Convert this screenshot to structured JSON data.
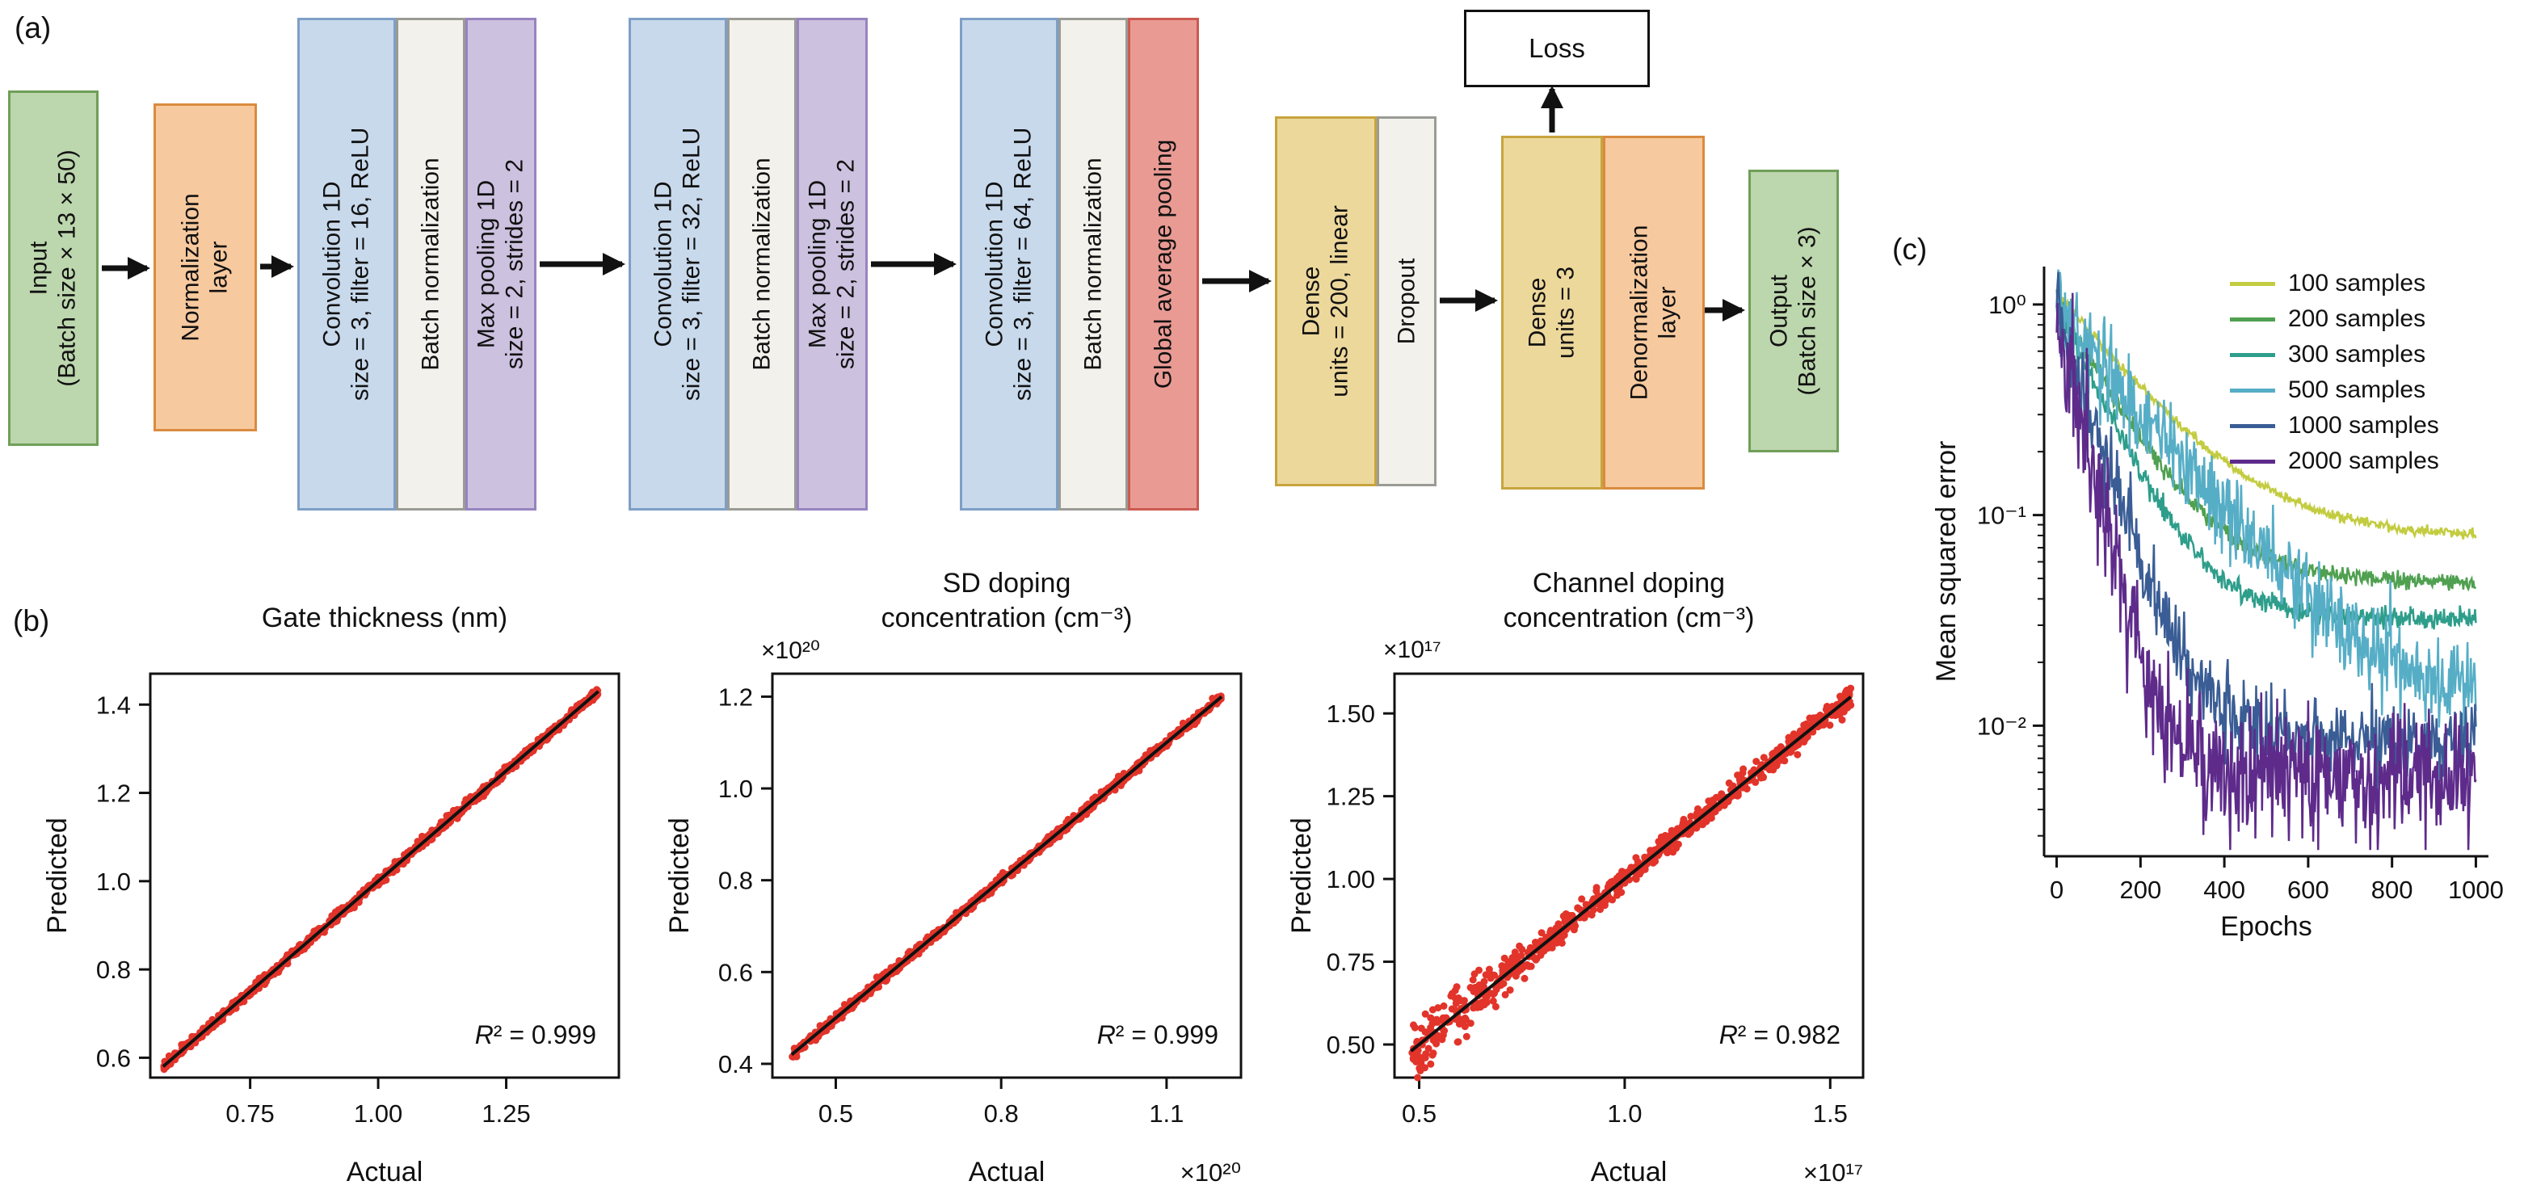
{
  "panel_labels": {
    "a": "(a)",
    "b": "(b)",
    "c": "(c)"
  },
  "architecture": {
    "loss_label": "Loss",
    "colors": {
      "input_output": "#bcd6ad",
      "normalization": "#f7c99e",
      "convolution": "#c8d9ec",
      "batch_norm": "#f2f1ec",
      "max_pooling": "#ccc1df",
      "global_average_pooling": "#e99a93",
      "dense": "#edd89b"
    },
    "blocks": [
      {
        "name": "input",
        "label": "Input\n(Batch size × 13 × 50)",
        "color": "#bcd6ad"
      },
      {
        "name": "normalization-layer",
        "label": "Normalization\nlayer",
        "color": "#f7c99e"
      },
      {
        "name": "conv1d-16",
        "label": "Convolution 1D\nsize = 3, filter = 16, ReLU",
        "color": "#c8d9ec"
      },
      {
        "name": "batch-norm-1",
        "label": "Batch normalization",
        "color": "#f2f1ec"
      },
      {
        "name": "max-pool-1",
        "label": "Max pooling 1D\nsize = 2, strides = 2",
        "color": "#ccc1df"
      },
      {
        "name": "conv1d-32",
        "label": "Convolution 1D\nsize = 3, filter = 32, ReLU",
        "color": "#c8d9ec"
      },
      {
        "name": "batch-norm-2",
        "label": "Batch normalization",
        "color": "#f2f1ec"
      },
      {
        "name": "max-pool-2",
        "label": "Max pooling 1D\nsize = 2, strides = 2",
        "color": "#ccc1df"
      },
      {
        "name": "conv1d-64",
        "label": "Convolution 1D\nsize = 3, filter = 64, ReLU",
        "color": "#c8d9ec"
      },
      {
        "name": "batch-norm-3",
        "label": "Batch normalization",
        "color": "#f2f1ec"
      },
      {
        "name": "global-average-pooling",
        "label": "Global average pooling",
        "color": "#e99a93"
      },
      {
        "name": "dense-200",
        "label": "Dense\nunits = 200, linear",
        "color": "#edd89b"
      },
      {
        "name": "dropout",
        "label": "Dropout",
        "color": "#f2f1ec"
      },
      {
        "name": "dense-3",
        "label": "Dense\nunits = 3",
        "color": "#edd89b"
      },
      {
        "name": "denormalization-layer",
        "label": "Denormalization\nlayer",
        "color": "#f7c99e"
      },
      {
        "name": "output",
        "label": "Output\n(Batch size × 3)",
        "color": "#bcd6ad"
      }
    ]
  },
  "chart_data": [
    {
      "id": "gate_thickness",
      "type": "scatter",
      "title": "Gate thickness (nm)",
      "xlabel": "Actual",
      "ylabel": "Predicted",
      "xlim": [
        0.555,
        1.47
      ],
      "ylim": [
        0.555,
        1.47
      ],
      "xticks": [
        0.75,
        1.0,
        1.25
      ],
      "xtick_labels": [
        "0.75",
        "1.00",
        "1.25"
      ],
      "yticks": [
        0.6,
        0.8,
        1.0,
        1.2,
        1.4
      ],
      "ytick_labels": [
        "0.6",
        "0.8",
        "1.0",
        "1.2",
        "1.4"
      ],
      "fit_line": {
        "x": [
          0.58,
          1.43
        ],
        "y": [
          0.58,
          1.43
        ]
      },
      "r2": 0.999,
      "r2_label": "R² = 0.999",
      "point_color": "#e2342a",
      "line_color": "#111111",
      "sim": {
        "seed": 11,
        "n_points": 850,
        "noise": 0.008,
        "hetero": 0
      }
    },
    {
      "id": "sd_doping",
      "type": "scatter",
      "title": "SD doping\nconcentration (cm⁻³)",
      "offset_top": "×10²⁰",
      "offset_bottom": "×10²⁰",
      "xlabel": "Actual",
      "ylabel": "Predicted",
      "xlim": [
        0.385,
        1.235
      ],
      "ylim": [
        0.37,
        1.25
      ],
      "xticks": [
        0.5,
        0.8,
        1.1
      ],
      "xtick_labels": [
        "0.5",
        "0.8",
        "1.1"
      ],
      "yticks": [
        0.4,
        0.6,
        0.8,
        1.0,
        1.2
      ],
      "ytick_labels": [
        "0.4",
        "0.6",
        "0.8",
        "1.0",
        "1.2"
      ],
      "fit_line": {
        "x": [
          0.42,
          1.2
        ],
        "y": [
          0.42,
          1.2
        ]
      },
      "r2": 0.999,
      "r2_label": "R² = 0.999",
      "point_color": "#e2342a",
      "line_color": "#111111",
      "sim": {
        "seed": 22,
        "n_points": 850,
        "noise": 0.008,
        "hetero": 0
      }
    },
    {
      "id": "channel_doping",
      "type": "scatter",
      "title": "Channel doping\nconcentration (cm⁻³)",
      "offset_top": "×10¹⁷",
      "offset_bottom": "×10¹⁷",
      "xlabel": "Actual",
      "ylabel": "Predicted",
      "xlim": [
        0.44,
        1.58
      ],
      "ylim": [
        0.4,
        1.62
      ],
      "xticks": [
        0.5,
        1.0,
        1.5
      ],
      "xtick_labels": [
        "0.5",
        "1.0",
        "1.5"
      ],
      "yticks": [
        0.5,
        0.75,
        1.0,
        1.25,
        1.5
      ],
      "ytick_labels": [
        "0.50",
        "0.75",
        "1.00",
        "1.25",
        "1.50"
      ],
      "fit_line": {
        "x": [
          0.48,
          1.55
        ],
        "y": [
          0.48,
          1.55
        ]
      },
      "r2": 0.982,
      "r2_label": "R² = 0.982",
      "point_color": "#e2342a",
      "line_color": "#111111",
      "sim": {
        "seed": 33,
        "n_points": 750,
        "noise": 0.021,
        "hetero": 2.2
      }
    },
    {
      "id": "training",
      "type": "line",
      "xlabel": "Epochs",
      "ylabel": "Mean squared error",
      "xlim": [
        -30,
        1030
      ],
      "xticks": [
        0,
        200,
        400,
        600,
        800,
        1000
      ],
      "xtick_labels": [
        "0",
        "200",
        "400",
        "600",
        "800",
        "1000"
      ],
      "yscale": "log",
      "ytick_values": [
        1,
        0.1,
        0.01
      ],
      "ytick_labels": [
        "10⁰",
        "10⁻¹",
        "10⁻²"
      ],
      "ylog_range": [
        -2.62,
        0.18
      ],
      "legend_position": "upper right",
      "series": [
        {
          "name": "100 samples",
          "color": "#c3cc40",
          "start": 1.15,
          "end": 0.078,
          "tau": 170,
          "noise": 0.05,
          "seed": 101
        },
        {
          "name": "200 samples",
          "color": "#4fa050",
          "start": 1.05,
          "end": 0.048,
          "tau": 120,
          "noise": 0.09,
          "seed": 102
        },
        {
          "name": "300 samples",
          "color": "#2e9e8b",
          "start": 1.0,
          "end": 0.032,
          "tau": 100,
          "noise": 0.11,
          "seed": 103
        },
        {
          "name": "500 samples",
          "color": "#56aec6",
          "start": 1.0,
          "end": 0.012,
          "tau": 170,
          "noise": 0.45,
          "seed": 104
        },
        {
          "name": "1000 samples",
          "color": "#3a5d95",
          "start": 0.95,
          "end": 0.0085,
          "tau": 70,
          "noise": 0.38,
          "seed": 105
        },
        {
          "name": "2000 samples",
          "color": "#5e2b8b",
          "start": 0.9,
          "end": 0.0058,
          "tau": 50,
          "noise": 0.62,
          "seed": 106
        }
      ]
    }
  ]
}
